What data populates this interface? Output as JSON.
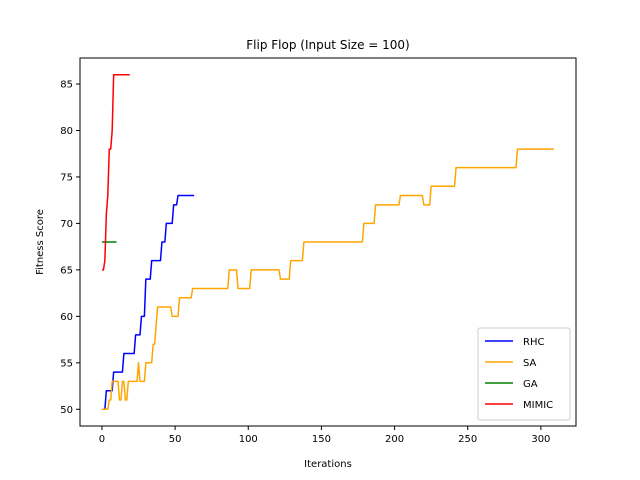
{
  "chart_data": {
    "type": "line",
    "title": "Flip Flop (Input Size = 100)",
    "xlabel": "Iterations",
    "ylabel": "Fitness Score",
    "xlim": [
      -15,
      324
    ],
    "ylim": [
      48.2,
      87.8
    ],
    "xticks": [
      0,
      50,
      100,
      150,
      200,
      250,
      300
    ],
    "yticks": [
      50,
      55,
      60,
      65,
      70,
      75,
      80,
      85
    ],
    "grid": false,
    "legend_position": "lower-right",
    "series": [
      {
        "name": "RHC",
        "color": "#0000ff",
        "points": [
          [
            0,
            50
          ],
          [
            2,
            50
          ],
          [
            3,
            52
          ],
          [
            7,
            52
          ],
          [
            8,
            54
          ],
          [
            14,
            54
          ],
          [
            15,
            56
          ],
          [
            22,
            56
          ],
          [
            23,
            58
          ],
          [
            26,
            58
          ],
          [
            27,
            60
          ],
          [
            29,
            60
          ],
          [
            30,
            64
          ],
          [
            33,
            64
          ],
          [
            34,
            66
          ],
          [
            40,
            66
          ],
          [
            41,
            68
          ],
          [
            43,
            68
          ],
          [
            44,
            70
          ],
          [
            48,
            70
          ],
          [
            49,
            72
          ],
          [
            51,
            72
          ],
          [
            52,
            73
          ],
          [
            63,
            73
          ]
        ]
      },
      {
        "name": "SA",
        "color": "#ffa500",
        "points": [
          [
            0,
            50
          ],
          [
            4,
            50
          ],
          [
            5,
            51
          ],
          [
            6,
            51
          ],
          [
            7,
            53
          ],
          [
            11,
            53
          ],
          [
            12,
            51
          ],
          [
            13,
            51
          ],
          [
            14,
            53
          ],
          [
            15,
            53
          ],
          [
            16,
            51
          ],
          [
            17,
            51
          ],
          [
            18,
            53
          ],
          [
            24,
            53
          ],
          [
            25,
            55
          ],
          [
            26,
            53
          ],
          [
            29,
            53
          ],
          [
            30,
            55
          ],
          [
            34,
            55
          ],
          [
            35,
            57
          ],
          [
            36,
            57
          ],
          [
            38,
            61
          ],
          [
            47,
            61
          ],
          [
            48,
            60
          ],
          [
            52,
            60
          ],
          [
            53,
            62
          ],
          [
            61,
            62
          ],
          [
            62,
            63
          ],
          [
            86,
            63
          ],
          [
            87,
            65
          ],
          [
            92,
            65
          ],
          [
            93,
            63
          ],
          [
            101,
            63
          ],
          [
            102,
            65
          ],
          [
            121,
            65
          ],
          [
            122,
            64
          ],
          [
            128,
            64
          ],
          [
            129,
            66
          ],
          [
            137,
            66
          ],
          [
            138,
            68
          ],
          [
            178,
            68
          ],
          [
            179,
            70
          ],
          [
            186,
            70
          ],
          [
            187,
            72
          ],
          [
            203,
            72
          ],
          [
            204,
            73
          ],
          [
            219,
            73
          ],
          [
            220,
            72
          ],
          [
            224,
            72
          ],
          [
            225,
            74
          ],
          [
            241,
            74
          ],
          [
            242,
            76
          ],
          [
            283,
            76
          ],
          [
            284,
            78
          ],
          [
            309,
            78
          ]
        ]
      },
      {
        "name": "GA",
        "color": "#008000",
        "points": [
          [
            0,
            68
          ],
          [
            10,
            68
          ]
        ]
      },
      {
        "name": "MIMIC",
        "color": "#ff0000",
        "points": [
          [
            0,
            65
          ],
          [
            1,
            65
          ],
          [
            2,
            66
          ],
          [
            3,
            71
          ],
          [
            4,
            73
          ],
          [
            5,
            78
          ],
          [
            6,
            78
          ],
          [
            7,
            80
          ],
          [
            8,
            86
          ],
          [
            19,
            86
          ]
        ]
      }
    ]
  }
}
